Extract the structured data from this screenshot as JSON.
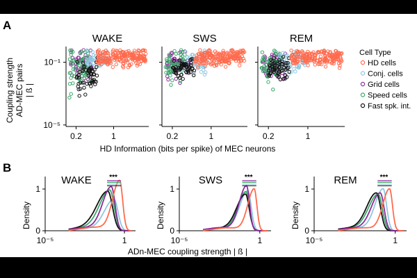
{
  "panel_labels": {
    "a": "A",
    "b": "B"
  },
  "colors": {
    "HD cells": "#ff6a4d",
    "Conj. cells": "#8fc7e0",
    "Grid cells": "#8e2a9a",
    "Speed cells": "#3aa86a",
    "Fast spk. int.": "#111111"
  },
  "chart_data": [
    {
      "panel": "A",
      "type": "scatter",
      "xscale": "log",
      "yscale": "log",
      "ylabel": [
        "Coupling strength",
        "AD-MEC pairs",
        "| ß |"
      ],
      "xlabel": "HD Information (bits per spike) of MEC neurons",
      "ylim": [
        8e-06,
        1
      ],
      "y_ticks": [
        {
          "value": 0.1,
          "label": "10⁻¹"
        },
        {
          "value": 1e-05,
          "label": "10⁻⁵"
        }
      ],
      "x_ticks": [
        {
          "value": 0.2,
          "label": "0.2"
        },
        {
          "value": 1,
          "label": "1"
        }
      ],
      "legend_title": "Cell Type",
      "legend": [
        "HD cells",
        "Conj. cells",
        "Grid cells",
        "Speed cells",
        "Fast spk. int."
      ],
      "subplots": [
        {
          "title": "WAKE",
          "xlim": [
            0.13,
            4.5
          ],
          "series": [
            {
              "name": "Grid cells",
              "x": [
                0.16,
                0.2,
                0.3,
                0.4
              ],
              "ymean": 0.08,
              "spread": 0.9
            },
            {
              "name": "Speed cells",
              "x": [
                0.15,
                0.2,
                0.28,
                0.35
              ],
              "ymean": 0.05,
              "spread": 1.3
            },
            {
              "name": "Conj. cells",
              "x": [
                0.3,
                0.5,
                0.7,
                0.9
              ],
              "ymean": 0.12,
              "spread": 0.6
            },
            {
              "name": "Fast spk. int.",
              "x": [
                0.2,
                0.3,
                0.4,
                0.5
              ],
              "ymean": 0.015,
              "spread": 1.0
            },
            {
              "name": "HD cells",
              "x": [
                0.5,
                1,
                2,
                4
              ],
              "ymean": 0.22,
              "spread": 0.45
            }
          ]
        },
        {
          "title": "SWS",
          "xlim": [
            0.13,
            4.5
          ],
          "series": [
            {
              "name": "Grid cells",
              "x": [
                0.16,
                0.2,
                0.3,
                0.4
              ],
              "ymean": 0.08,
              "spread": 0.8
            },
            {
              "name": "Speed cells",
              "x": [
                0.15,
                0.2,
                0.28,
                0.35
              ],
              "ymean": 0.06,
              "spread": 0.9
            },
            {
              "name": "Conj. cells",
              "x": [
                0.3,
                0.5,
                0.7,
                0.9
              ],
              "ymean": 0.1,
              "spread": 0.7
            },
            {
              "name": "Fast spk. int.",
              "x": [
                0.2,
                0.3,
                0.4,
                0.5
              ],
              "ymean": 0.04,
              "spread": 0.6
            },
            {
              "name": "HD cells",
              "x": [
                0.5,
                1,
                2,
                4
              ],
              "ymean": 0.2,
              "spread": 0.45
            }
          ]
        },
        {
          "title": "REM",
          "xlim": [
            0.13,
            4.5
          ],
          "series": [
            {
              "name": "Grid cells",
              "x": [
                0.16,
                0.2,
                0.3,
                0.4
              ],
              "ymean": 0.08,
              "spread": 0.8
            },
            {
              "name": "Speed cells",
              "x": [
                0.15,
                0.2,
                0.28,
                0.35
              ],
              "ymean": 0.06,
              "spread": 0.9
            },
            {
              "name": "Conj. cells",
              "x": [
                0.3,
                0.5,
                0.7,
                0.9
              ],
              "ymean": 0.1,
              "spread": 0.7
            },
            {
              "name": "Fast spk. int.",
              "x": [
                0.2,
                0.3,
                0.4,
                0.5
              ],
              "ymean": 0.04,
              "spread": 0.6
            },
            {
              "name": "HD cells",
              "x": [
                0.5,
                1,
                2,
                4
              ],
              "ymean": 0.2,
              "spread": 0.45
            }
          ]
        }
      ]
    },
    {
      "panel": "B",
      "type": "line",
      "xscale": "log",
      "ylabel": "Density",
      "xlabel": "ADn-MEC coupling strength | ß |",
      "xlim": [
        1e-05,
        5
      ],
      "ylim": [
        0,
        1.3
      ],
      "x_ticks": [
        {
          "value": 1e-05,
          "label": "10⁻⁵"
        },
        {
          "value": 1,
          "label": "1"
        }
      ],
      "y_ticks": [
        {
          "value": 0,
          "label": "0"
        },
        {
          "value": 1,
          "label": "1"
        }
      ],
      "significance": "***",
      "subplots": [
        {
          "title": "WAKE",
          "series": [
            {
              "name": "HD cells",
              "peak_x": 0.5,
              "peak_y": 1.2,
              "width": 0.45
            },
            {
              "name": "Grid cells",
              "peak_x": 0.15,
              "peak_y": 1.05,
              "width": 0.55
            },
            {
              "name": "Speed cells",
              "peak_x": 0.12,
              "peak_y": 0.97,
              "width": 0.65
            },
            {
              "name": "Fast spk. int.",
              "peak_x": 0.09,
              "peak_y": 0.94,
              "width": 0.7
            },
            {
              "name": "Conj. cells",
              "peak_x": 0.22,
              "peak_y": 0.75,
              "width": 0.6
            }
          ]
        },
        {
          "title": "SWS",
          "series": [
            {
              "name": "HD cells",
              "peak_x": 0.45,
              "peak_y": 1.0,
              "width": 0.4
            },
            {
              "name": "Grid cells",
              "peak_x": 0.15,
              "peak_y": 1.07,
              "width": 0.45
            },
            {
              "name": "Speed cells",
              "peak_x": 0.14,
              "peak_y": 0.93,
              "width": 0.5
            },
            {
              "name": "Fast spk. int.",
              "peak_x": 0.13,
              "peak_y": 0.87,
              "width": 0.55
            },
            {
              "name": "Conj. cells",
              "peak_x": 0.18,
              "peak_y": 0.95,
              "width": 0.5
            }
          ]
        },
        {
          "title": "REM",
          "series": [
            {
              "name": "HD cells",
              "peak_x": 0.45,
              "peak_y": 1.0,
              "width": 0.42
            },
            {
              "name": "Grid cells",
              "peak_x": 0.12,
              "peak_y": 0.9,
              "width": 0.55
            },
            {
              "name": "Speed cells",
              "peak_x": 0.09,
              "peak_y": 0.87,
              "width": 0.6
            },
            {
              "name": "Fast spk. int.",
              "peak_x": 0.07,
              "peak_y": 0.9,
              "width": 0.6
            },
            {
              "name": "Conj. cells",
              "peak_x": 0.18,
              "peak_y": 1.0,
              "width": 0.5
            }
          ]
        }
      ]
    }
  ]
}
